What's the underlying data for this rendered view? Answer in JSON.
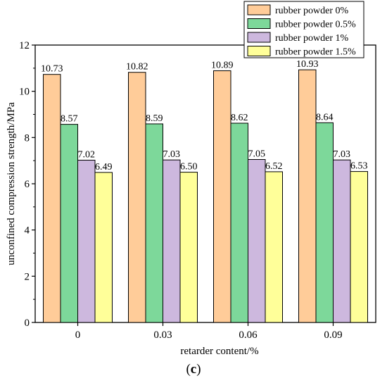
{
  "chart_data": {
    "type": "bar",
    "categories": [
      "0",
      "0.03",
      "0.06",
      "0.09"
    ],
    "series": [
      {
        "name": "rubber powder 0%",
        "color": "#FFCC99",
        "values": [
          10.73,
          10.82,
          10.89,
          10.93
        ],
        "labels": [
          "10.73",
          "10.82",
          "10.89",
          "10.93"
        ]
      },
      {
        "name": "rubber powder 0.5%",
        "color": "#7DD89A",
        "values": [
          8.57,
          8.59,
          8.62,
          8.64
        ],
        "labels": [
          "8.57",
          "8.59",
          "8.62",
          "8.64"
        ]
      },
      {
        "name": "rubber powder 1%",
        "color": "#CDB8DE",
        "values": [
          7.02,
          7.03,
          7.05,
          7.03
        ],
        "labels": [
          "7.02",
          "7.03",
          "7.05",
          "7.03"
        ]
      },
      {
        "name": "rubber powder 1.5%",
        "color": "#FFFF99",
        "values": [
          6.49,
          6.5,
          6.52,
          6.53
        ],
        "labels": [
          "6.49",
          "6.50",
          "6.52",
          "6.53"
        ]
      }
    ],
    "xlabel": "retarder content/%",
    "ylabel": "unconfined compression strength/MPa",
    "ylim": [
      0,
      12
    ],
    "yticks": [
      "0",
      "2",
      "4",
      "6",
      "8",
      "10",
      "12"
    ],
    "grid": false,
    "legend": "top-right"
  },
  "caption": {
    "open": "(",
    "letter": "c",
    "close": ")"
  }
}
